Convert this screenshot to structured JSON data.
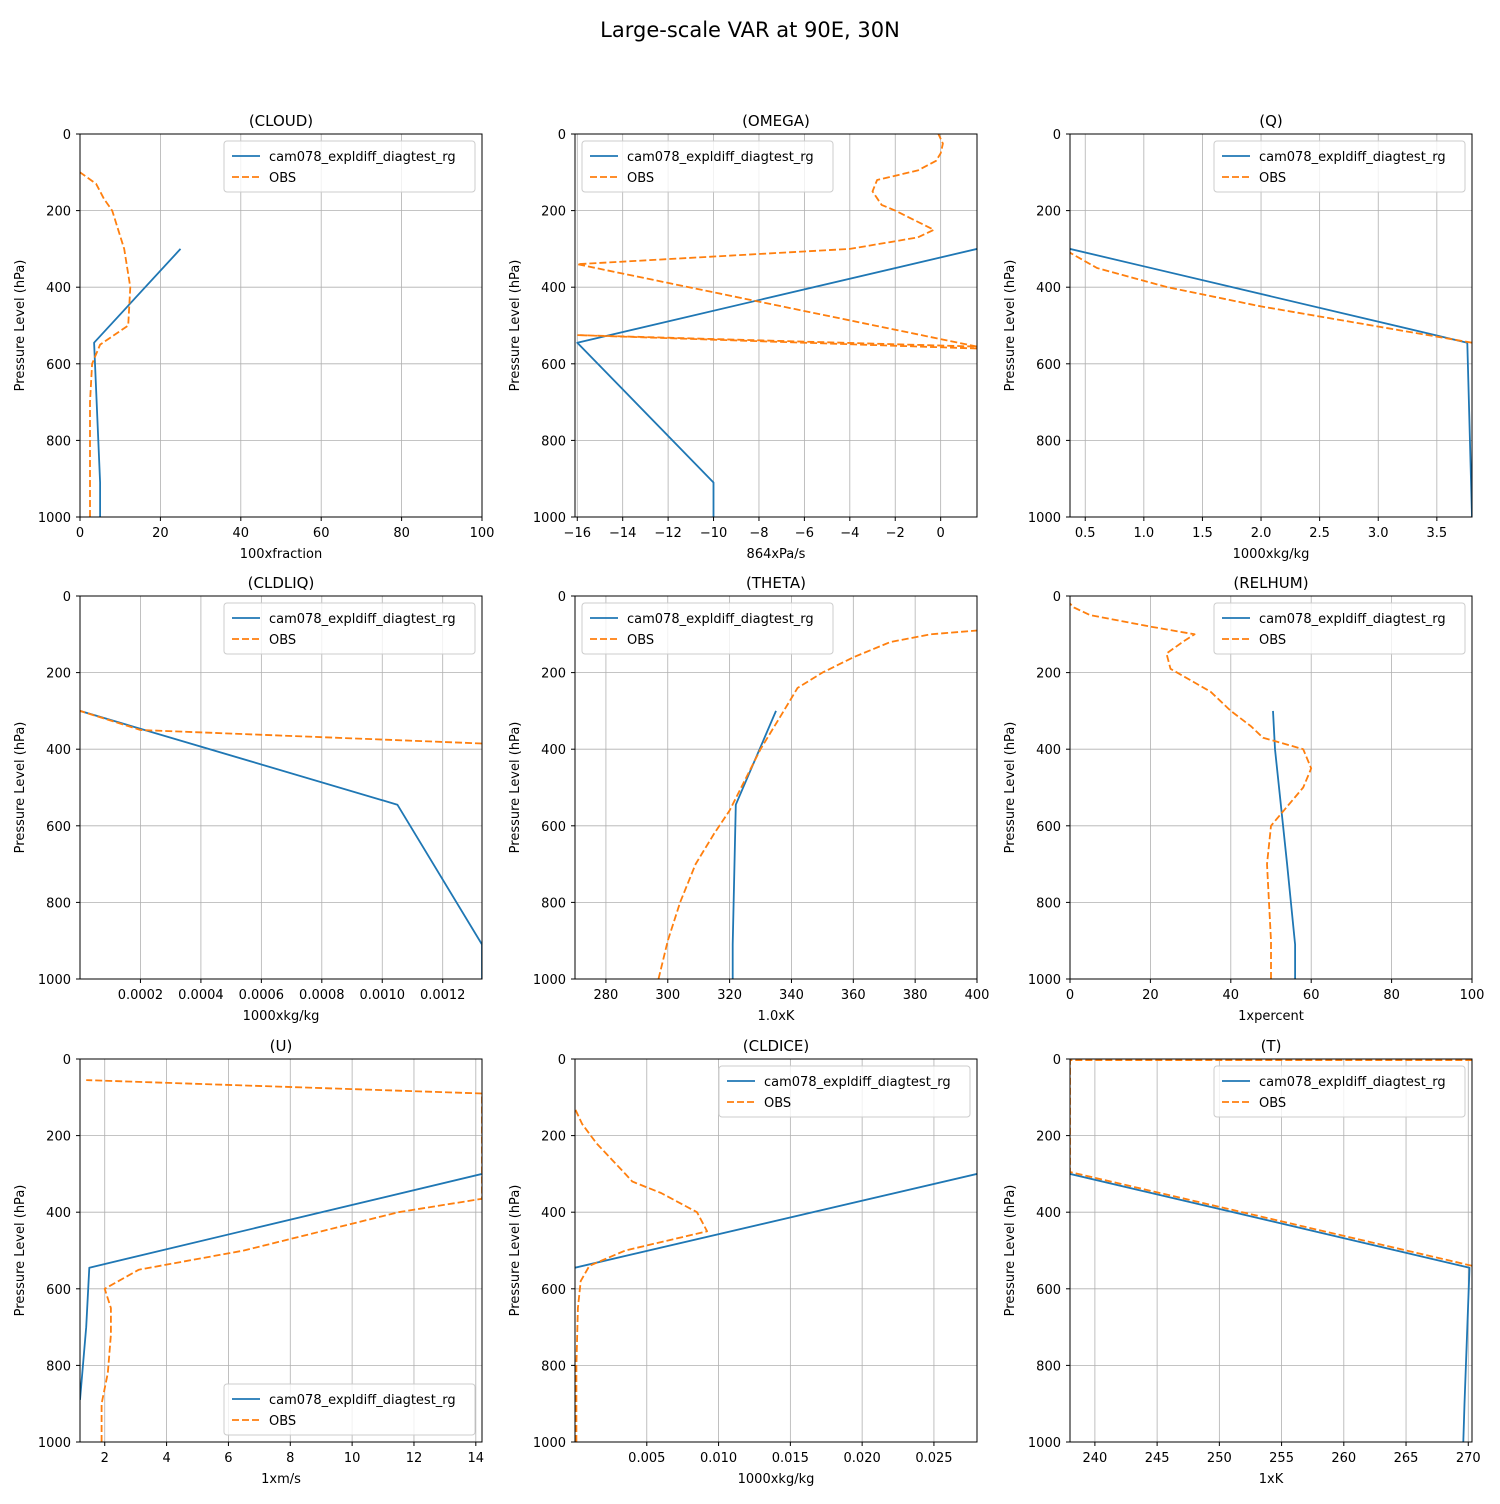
{
  "figure": {
    "title": "Large-scale VAR at 90E, 30N",
    "colors": {
      "model": "#1f77b4",
      "obs": "#ff7f0e",
      "grid": "#b0b0b0"
    }
  },
  "chart_data": [
    {
      "type": "line",
      "title": "(CLOUD)",
      "xlabel": "100xfraction",
      "ylabel": "Pressure Level (hPa)",
      "xlim": [
        0,
        100
      ],
      "ylim": [
        1000,
        0
      ],
      "y_inverted": true,
      "grid": true,
      "legend": "top-right",
      "xticks": [
        0,
        20,
        40,
        60,
        80,
        100
      ],
      "yticks": [
        0,
        200,
        400,
        600,
        800,
        1000
      ],
      "series": [
        {
          "name": "cam078_expldiff_diagtest_rg",
          "style": "solid",
          "x": [
            5,
            5,
            3.5,
            25
          ],
          "y": [
            1000,
            910,
            545,
            300
          ]
        },
        {
          "name": "OBS",
          "style": "dashed",
          "x": [
            2.5,
            2.5,
            2.5,
            2.5,
            3,
            5,
            12,
            12.5,
            11,
            8,
            6,
            4,
            0
          ],
          "y": [
            1000,
            900,
            800,
            700,
            600,
            550,
            500,
            400,
            300,
            200,
            170,
            130,
            100
          ]
        }
      ]
    },
    {
      "type": "line",
      "title": "(OMEGA)",
      "xlabel": "864xPa/s",
      "ylabel": "Pressure Level (hPa)",
      "xlim": [
        -16.1,
        1.6
      ],
      "ylim": [
        1000,
        0
      ],
      "y_inverted": true,
      "grid": true,
      "legend": "top-left",
      "xticks": [
        -16,
        -14,
        -12,
        -10,
        -8,
        -6,
        -4,
        -2,
        0
      ],
      "xtick_labels": [
        "−16",
        "−14",
        "−12",
        "−10",
        "−8",
        "−6",
        "−4",
        "−2",
        "0"
      ],
      "yticks": [
        0,
        200,
        400,
        600,
        800,
        1000
      ],
      "series": [
        {
          "name": "cam078_expldiff_diagtest_rg",
          "style": "solid",
          "x": [
            -10,
            -10,
            -16,
            1.6
          ],
          "y": [
            1000,
            910,
            545,
            300
          ]
        },
        {
          "name": "OBS",
          "style": "dashed",
          "x": [
            1.6,
            -16,
            1.6,
            -16,
            -4,
            -1,
            -0.3,
            -2,
            -2.6,
            -3,
            -2.8,
            -1,
            -0.2,
            0,
            0.1,
            -0.1
          ],
          "y": [
            560,
            525,
            555,
            340,
            300,
            270,
            250,
            200,
            185,
            150,
            120,
            95,
            70,
            50,
            25,
            0
          ]
        }
      ]
    },
    {
      "type": "line",
      "title": "(Q)",
      "xlabel": "1000xkg/kg",
      "ylabel": "Pressure Level (hPa)",
      "xlim": [
        0.37,
        3.8
      ],
      "ylim": [
        1000,
        0
      ],
      "y_inverted": true,
      "grid": true,
      "legend": "top-right",
      "xticks": [
        0.5,
        1.0,
        1.5,
        2.0,
        2.5,
        3.0,
        3.5
      ],
      "xtick_labels": [
        "0.5",
        "1.0",
        "1.5",
        "2.0",
        "2.5",
        "3.0",
        "3.5"
      ],
      "yticks": [
        0,
        200,
        400,
        600,
        800,
        1000
      ],
      "series": [
        {
          "name": "cam078_expldiff_diagtest_rg",
          "style": "solid",
          "x": [
            3.8,
            3.76,
            0.37
          ],
          "y": [
            1000,
            545,
            300
          ]
        },
        {
          "name": "OBS",
          "style": "dashed",
          "x": [
            3.8,
            2.0,
            1.2,
            0.9,
            0.6,
            0.37
          ],
          "y": [
            545,
            450,
            400,
            375,
            350,
            310
          ]
        }
      ]
    },
    {
      "type": "line",
      "title": "(CLDLIQ)",
      "xlabel": "1000xkg/kg",
      "ylabel": "Pressure Level (hPa)",
      "xlim": [
        0,
        0.00133
      ],
      "ylim": [
        1000,
        0
      ],
      "y_inverted": true,
      "grid": true,
      "legend": "top-right",
      "xticks": [
        0.0002,
        0.0004,
        0.0006,
        0.0008,
        0.001,
        0.0012
      ],
      "xtick_labels": [
        "0.0002",
        "0.0004",
        "0.0006",
        "0.0008",
        "0.0010",
        "0.0012"
      ],
      "yticks": [
        0,
        200,
        400,
        600,
        800,
        1000
      ],
      "series": [
        {
          "name": "cam078_expldiff_diagtest_rg",
          "style": "solid",
          "x": [
            0.00133,
            0.00133,
            0.00105,
            0
          ],
          "y": [
            1000,
            910,
            545,
            300
          ]
        },
        {
          "name": "OBS",
          "style": "dashed",
          "x": [
            0.00133,
            0.0002,
            0
          ],
          "y": [
            385,
            350,
            300
          ]
        }
      ]
    },
    {
      "type": "line",
      "title": "(THETA)",
      "xlabel": "1.0xK",
      "ylabel": "Pressure Level (hPa)",
      "xlim": [
        270,
        400
      ],
      "ylim": [
        1000,
        0
      ],
      "y_inverted": true,
      "grid": true,
      "legend": "top-left",
      "xticks": [
        280,
        300,
        320,
        340,
        360,
        380,
        400
      ],
      "yticks": [
        0,
        200,
        400,
        600,
        800,
        1000
      ],
      "series": [
        {
          "name": "cam078_expldiff_diagtest_rg",
          "style": "solid",
          "x": [
            321,
            321,
            322,
            335
          ],
          "y": [
            1000,
            910,
            545,
            300
          ]
        },
        {
          "name": "OBS",
          "style": "dashed",
          "x": [
            297,
            300,
            304,
            309,
            315,
            320,
            325,
            330,
            336,
            342,
            350,
            360,
            372,
            385,
            400
          ],
          "y": [
            1000,
            900,
            800,
            700,
            620,
            560,
            480,
            400,
            320,
            240,
            200,
            160,
            120,
            100,
            90
          ]
        }
      ]
    },
    {
      "type": "line",
      "title": "(RELHUM)",
      "xlabel": "1xpercent",
      "ylabel": "Pressure Level (hPa)",
      "xlim": [
        0,
        100
      ],
      "ylim": [
        1000,
        0
      ],
      "y_inverted": true,
      "grid": true,
      "legend": "top-right",
      "xticks": [
        0,
        20,
        40,
        60,
        80,
        100
      ],
      "yticks": [
        0,
        200,
        400,
        600,
        800,
        1000
      ],
      "series": [
        {
          "name": "cam078_expldiff_diagtest_rg",
          "style": "solid",
          "x": [
            56,
            56,
            54,
            51,
            50.5
          ],
          "y": [
            1000,
            910,
            700,
            400,
            300
          ]
        },
        {
          "name": "OBS",
          "style": "dashed",
          "x": [
            50,
            50,
            49.5,
            49,
            50,
            54,
            58,
            60,
            58,
            48,
            45,
            40,
            35,
            30,
            25,
            24,
            28,
            31,
            20,
            5,
            1,
            0
          ],
          "y": [
            1000,
            900,
            800,
            700,
            600,
            550,
            500,
            450,
            400,
            370,
            340,
            300,
            250,
            220,
            190,
            150,
            120,
            100,
            80,
            50,
            30,
            20
          ]
        }
      ]
    },
    {
      "type": "line",
      "title": "(U)",
      "xlabel": "1xm/s",
      "ylabel": "Pressure Level (hPa)",
      "xlim": [
        1.2,
        14.2
      ],
      "ylim": [
        1000,
        0
      ],
      "y_inverted": true,
      "grid": true,
      "legend": "bottom-right",
      "xticks": [
        2,
        4,
        6,
        8,
        10,
        12,
        14
      ],
      "yticks": [
        0,
        200,
        400,
        600,
        800,
        1000
      ],
      "series": [
        {
          "name": "cam078_expldiff_diagtest_rg",
          "style": "solid",
          "x": [
            1.2,
            1.4,
            1.5,
            14.2
          ],
          "y": [
            890,
            700,
            545,
            300
          ]
        },
        {
          "name": "OBS",
          "style": "dashed",
          "x": [
            1.9,
            1.9,
            2.1,
            2.2,
            2.2,
            2.0,
            3.1,
            6.5,
            11.5,
            14.2,
            14.2,
            1.4
          ],
          "y": [
            1000,
            900,
            820,
            720,
            650,
            600,
            550,
            500,
            400,
            365,
            90,
            55
          ]
        }
      ]
    },
    {
      "type": "line",
      "title": "(CLDICE)",
      "xlabel": "1000xkg/kg",
      "ylabel": "Pressure Level (hPa)",
      "xlim": [
        0,
        0.028
      ],
      "ylim": [
        1000,
        0
      ],
      "y_inverted": true,
      "grid": true,
      "legend": "top-right",
      "xticks": [
        0.005,
        0.01,
        0.015,
        0.02,
        0.025
      ],
      "xtick_labels": [
        "0.005",
        "0.010",
        "0.015",
        "0.020",
        "0.025"
      ],
      "yticks": [
        0,
        200,
        400,
        600,
        800,
        1000
      ],
      "series": [
        {
          "name": "cam078_expldiff_diagtest_rg",
          "style": "solid",
          "x": [
            0,
            0.028
          ],
          "y": [
            545,
            300
          ]
        },
        {
          "name": "OBS",
          "style": "dashed",
          "x": [
            0.0001,
            0.0001,
            0.0002,
            0.0004,
            0.001,
            0.0035,
            0.0092,
            0.0085,
            0.006,
            0.004,
            0.0035,
            0.0025,
            0.0015,
            0.0005,
            0
          ],
          "y": [
            1000,
            800,
            650,
            580,
            540,
            500,
            450,
            400,
            350,
            320,
            300,
            260,
            220,
            170,
            130
          ]
        }
      ]
    },
    {
      "type": "line",
      "title": "(T)",
      "xlabel": "1xK",
      "ylabel": "Pressure Level (hPa)",
      "xlim": [
        238,
        270.3
      ],
      "ylim": [
        1000,
        0
      ],
      "y_inverted": true,
      "grid": true,
      "legend": "top-right",
      "xticks": [
        240,
        245,
        250,
        255,
        260,
        265,
        270
      ],
      "yticks": [
        0,
        200,
        400,
        600,
        800,
        1000
      ],
      "series": [
        {
          "name": "cam078_expldiff_diagtest_rg",
          "style": "solid",
          "x": [
            269.6,
            269.7,
            270.1,
            238
          ],
          "y": [
            1000,
            900,
            545,
            300
          ]
        },
        {
          "name": "OBS",
          "style": "dashed",
          "x": [
            270.3,
            238,
            238,
            270.3
          ],
          "y": [
            540,
            295,
            3,
            3
          ]
        }
      ]
    }
  ]
}
